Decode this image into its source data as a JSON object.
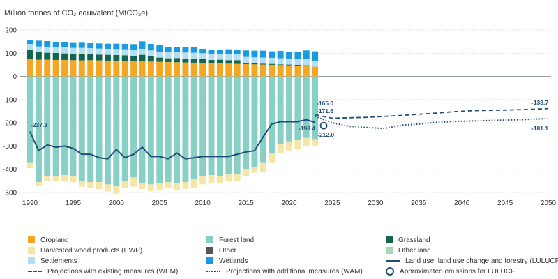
{
  "chart_data": {
    "type": "bar",
    "ylabel": "Million tonnes of CO₂ equivalent (MtCO₂e)",
    "ylim": [
      -500,
      200
    ],
    "yticks": [
      200,
      100,
      0,
      -100,
      -200,
      -300,
      -400,
      -500
    ],
    "xlim": [
      1990,
      2050
    ],
    "xticks": [
      1990,
      1995,
      2000,
      2005,
      2010,
      2015,
      2020,
      2025,
      2030,
      2035,
      2040,
      2045,
      2050
    ],
    "x": [
      1990,
      1991,
      1992,
      1993,
      1994,
      1995,
      1996,
      1997,
      1998,
      1999,
      2000,
      2001,
      2002,
      2003,
      2004,
      2005,
      2006,
      2007,
      2008,
      2009,
      2010,
      2011,
      2012,
      2013,
      2014,
      2015,
      2016,
      2017,
      2018,
      2019,
      2020,
      2021,
      2022,
      2023
    ],
    "series": [
      {
        "name": "Cropland",
        "color": "#f5a623",
        "values": [
          75,
          72,
          72,
          71,
          71,
          70,
          69,
          70,
          69,
          68,
          68,
          67,
          66,
          65,
          64,
          63,
          62,
          61,
          60,
          59,
          58,
          57,
          56,
          55,
          54,
          53,
          52,
          51,
          50,
          49,
          48,
          47,
          46,
          42
        ]
      },
      {
        "name": "Grassland",
        "color": "#11664f",
        "values": [
          40,
          32,
          30,
          30,
          28,
          27,
          28,
          26,
          25,
          25,
          24,
          24,
          23,
          28,
          22,
          18,
          16,
          18,
          17,
          17,
          16,
          14,
          16,
          15,
          16,
          5,
          4,
          4,
          4,
          3,
          3,
          3,
          2,
          0
        ]
      },
      {
        "name": "Settlements",
        "color": "#b3dff5",
        "values": [
          25,
          25,
          26,
          26,
          26,
          26,
          26,
          26,
          26,
          26,
          26,
          26,
          26,
          26,
          26,
          26,
          26,
          26,
          26,
          26,
          26,
          26,
          26,
          26,
          26,
          26,
          26,
          26,
          26,
          26,
          26,
          26,
          26,
          26
        ]
      },
      {
        "name": "Wetlands",
        "color": "#1a9ae0",
        "values": [
          18,
          25,
          24,
          22,
          24,
          24,
          25,
          23,
          22,
          22,
          23,
          23,
          24,
          32,
          28,
          30,
          24,
          22,
          24,
          26,
          19,
          19,
          18,
          21,
          19,
          28,
          29,
          30,
          28,
          32,
          28,
          30,
          38,
          40
        ]
      },
      {
        "name": "Other",
        "color": "#555555",
        "values": [
          0,
          0,
          0,
          0,
          0,
          0,
          0,
          0,
          0,
          0,
          0,
          0,
          0,
          0,
          0,
          0,
          0,
          0,
          0,
          0,
          0,
          0,
          0,
          0,
          0,
          0,
          0,
          0,
          0,
          0,
          0,
          0,
          0,
          0
        ]
      },
      {
        "name": "Other land",
        "color": "#a8d5b5",
        "values": [
          0,
          0,
          0,
          0,
          0,
          0,
          0,
          0,
          0,
          0,
          0,
          0,
          0,
          0,
          0,
          0,
          0,
          0,
          0,
          0,
          0,
          0,
          0,
          0,
          0,
          0,
          0,
          0,
          0,
          0,
          0,
          0,
          0,
          0
        ]
      },
      {
        "name": "Forest land",
        "color": "#88cfc6",
        "values": [
          -370,
          -455,
          -430,
          -430,
          -425,
          -430,
          -450,
          -455,
          -455,
          -465,
          -470,
          -450,
          -435,
          -460,
          -465,
          -460,
          -455,
          -460,
          -455,
          -440,
          -430,
          -425,
          -430,
          -420,
          -420,
          -400,
          -390,
          -370,
          -330,
          -290,
          -280,
          -275,
          -265,
          -270
        ]
      },
      {
        "name": "Harvested wood products (HWP)",
        "color": "#f5e6a8",
        "values": [
          -25,
          -15,
          -20,
          -20,
          -28,
          -25,
          -25,
          -25,
          -30,
          -30,
          -35,
          -30,
          -40,
          -25,
          -30,
          -30,
          -25,
          -30,
          -30,
          -40,
          -35,
          -35,
          -30,
          -30,
          -30,
          -30,
          -25,
          -40,
          -40,
          -40,
          -40,
          -40,
          -35,
          -30
        ]
      }
    ],
    "lulucf_net": {
      "name": "Land use, land use change and forestry (LULUCF)",
      "color": "#1f4e79",
      "values": [
        -237.3,
        -320,
        -295,
        -305,
        -300,
        -310,
        -335,
        -335,
        -350,
        -355,
        -315,
        -350,
        -335,
        -305,
        -345,
        -345,
        -355,
        -330,
        -355,
        -350,
        -345,
        -345,
        -345,
        -345,
        -335,
        -325,
        -320,
        -260,
        -205,
        -195,
        -195,
        -195,
        -186,
        -198.4
      ]
    },
    "wem": {
      "name": "Projections with existing measures (WEM)",
      "x": [
        2023,
        2025,
        2027,
        2029,
        2031,
        2033,
        2035,
        2037,
        2039,
        2041,
        2043,
        2045,
        2047,
        2050
      ],
      "values": [
        -165.0,
        -180,
        -178,
        -176,
        -172,
        -168,
        -163,
        -158,
        -152,
        -148,
        -146,
        -145,
        -143,
        -138.7
      ]
    },
    "wam": {
      "name": "Projections with additional measures (WAM)",
      "x": [
        2023,
        2025,
        2027,
        2029,
        2031,
        2033,
        2035,
        2037,
        2039,
        2041,
        2043,
        2045,
        2047,
        2050
      ],
      "values": [
        -171.6,
        -200,
        -215,
        -220,
        -224,
        -210,
        -205,
        -198,
        -194,
        -192,
        -190,
        -188,
        -186,
        -181.1
      ]
    },
    "approx": {
      "name": "Approximated emissions for LULUCF",
      "x": 2024,
      "value": -212.0
    },
    "annotations": [
      {
        "text": "-237.3"
      },
      {
        "text": "-165.0"
      },
      {
        "text": "-171.6"
      },
      {
        "text": "-198.4"
      },
      {
        "text": "-212.0"
      },
      {
        "text": "-138.7"
      },
      {
        "text": "-181.1"
      }
    ]
  },
  "legend": [
    {
      "label": "Cropland",
      "kind": "swatch",
      "color": "#f5a623"
    },
    {
      "label": "Forest land",
      "kind": "swatch",
      "color": "#88cfc6"
    },
    {
      "label": "Grassland",
      "kind": "swatch",
      "color": "#11664f"
    },
    {
      "label": "Harvested wood products (HWP)",
      "kind": "swatch",
      "color": "#f5e6a8"
    },
    {
      "label": "Other",
      "kind": "swatch",
      "color": "#555555"
    },
    {
      "label": "Other land",
      "kind": "swatch",
      "color": "#a8d5b5"
    },
    {
      "label": "Settlements",
      "kind": "swatch",
      "color": "#b3dff5"
    },
    {
      "label": "Wetlands",
      "kind": "swatch",
      "color": "#1a9ae0"
    },
    {
      "label": "Land use, land use change and forestry (LULUCF)",
      "kind": "solid-line",
      "color": "#1f4e79"
    },
    {
      "label": "Projections with existing measures (WEM)",
      "kind": "dashed-line",
      "color": "#1f4e79"
    },
    {
      "label": "Projections with additional measures (WAM)",
      "kind": "dotted-line",
      "color": "#1f4e79"
    },
    {
      "label": "Approximated emissions for LULUCF",
      "kind": "circle",
      "color": "#1f4e79"
    }
  ]
}
